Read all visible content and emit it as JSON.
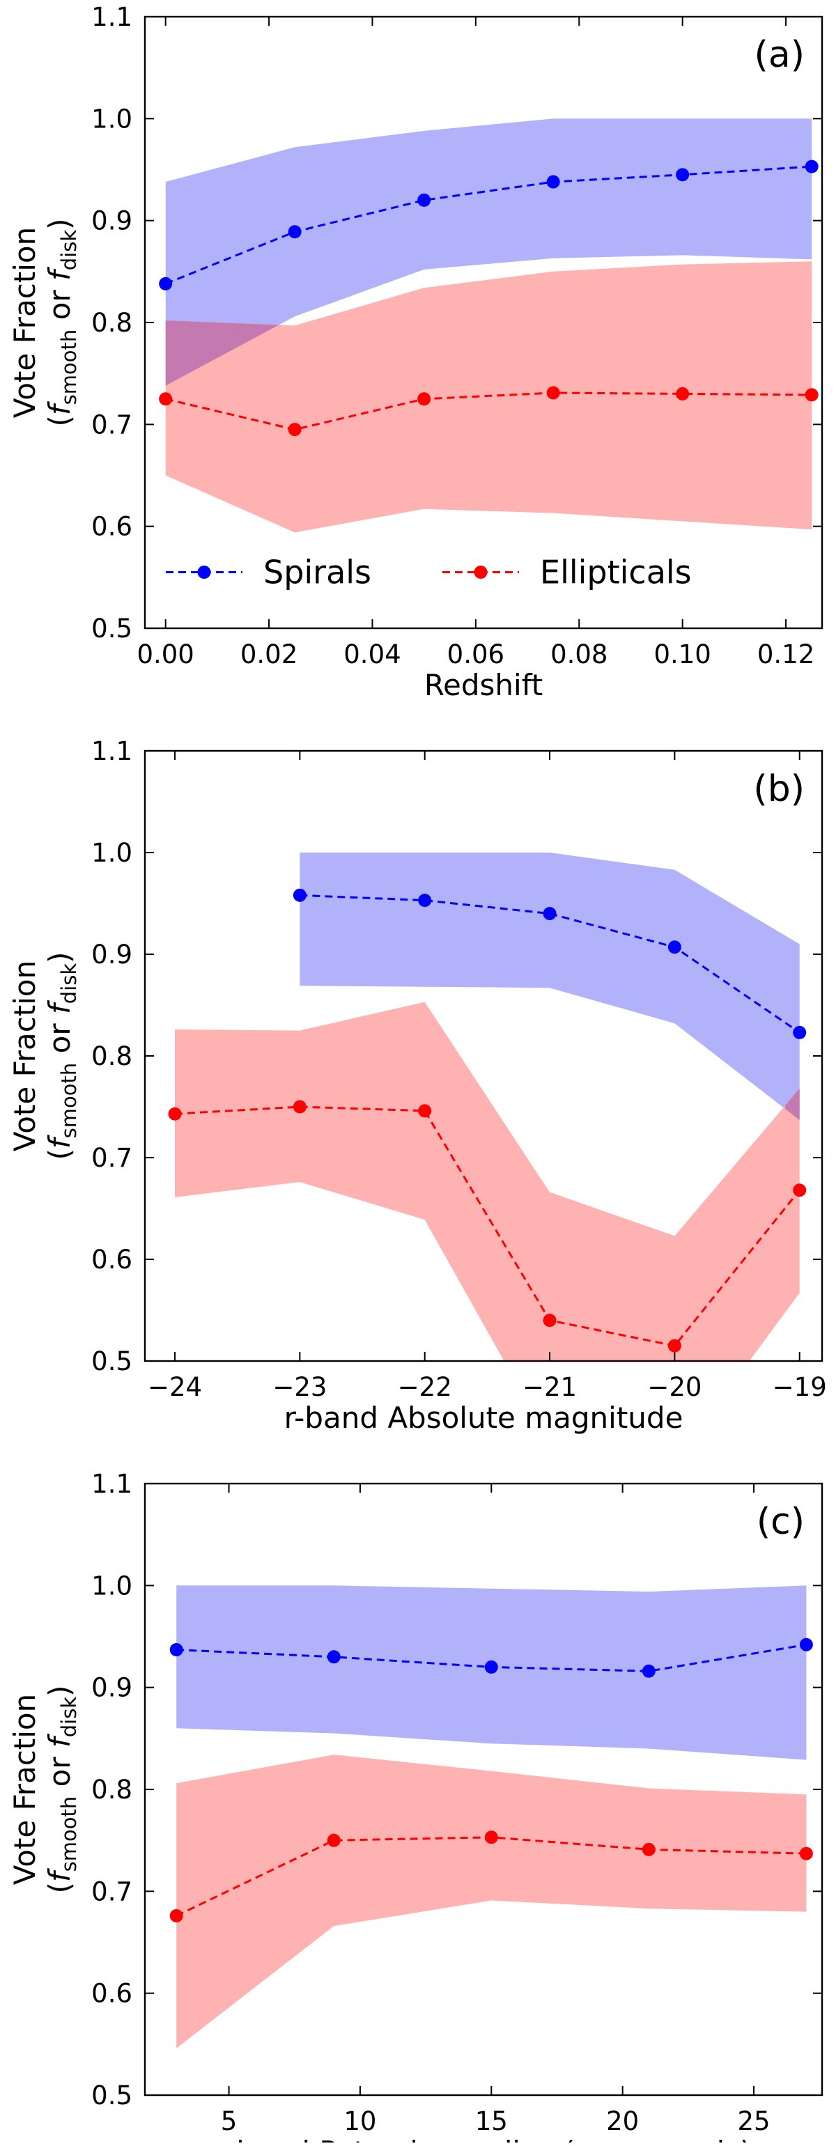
{
  "figure": {
    "ylabel_main": "Vote Fraction",
    "ylabel_sub_open": "(",
    "ylabel_f1": "f",
    "ylabel_s1": "smooth",
    "ylabel_or": " or ",
    "ylabel_f2": "f",
    "ylabel_s2": "disk",
    "ylabel_close": ")"
  },
  "colors": {
    "spirals_line": "#0000ff",
    "spirals_band": "#b2b2fb",
    "ellipticals_line": "#ff0000",
    "ellipticals_band": "#ffb2b2",
    "overlap_band": "#c47ab0"
  },
  "chart_data": [
    {
      "type": "line",
      "panel_label": "(a)",
      "title": "",
      "xlabel": "Redshift",
      "ylabel": "Vote Fraction (f_smooth or f_disk)",
      "xlim": [
        -0.004,
        0.127
      ],
      "ylim": [
        0.5,
        1.1
      ],
      "xticks": [
        0.0,
        0.02,
        0.04,
        0.06,
        0.08,
        0.1,
        0.12
      ],
      "xtick_labels": [
        "0.00",
        "0.02",
        "0.04",
        "0.06",
        "0.08",
        "0.10",
        "0.12"
      ],
      "yticks": [
        0.5,
        0.6,
        0.7,
        0.8,
        0.9,
        1.0,
        1.1
      ],
      "ytick_labels": [
        "0.5",
        "0.6",
        "0.7",
        "0.8",
        "0.9",
        "1.0",
        "1.1"
      ],
      "legend": {
        "placement": "bottom",
        "entries": [
          "Spirals",
          "Ellipticals"
        ]
      },
      "series": [
        {
          "name": "Spirals",
          "x": [
            0.0,
            0.025,
            0.05,
            0.075,
            0.1,
            0.125
          ],
          "y": [
            0.838,
            0.889,
            0.92,
            0.938,
            0.945,
            0.953
          ],
          "upper": [
            0.938,
            0.972,
            0.988,
            1.0,
            1.0,
            1.0
          ],
          "lower": [
            0.738,
            0.806,
            0.852,
            0.863,
            0.866,
            0.862
          ]
        },
        {
          "name": "Ellipticals",
          "x": [
            0.0,
            0.025,
            0.05,
            0.075,
            0.1,
            0.125
          ],
          "y": [
            0.725,
            0.695,
            0.725,
            0.731,
            0.73,
            0.729
          ],
          "upper": [
            0.802,
            0.797,
            0.834,
            0.85,
            0.857,
            0.86
          ],
          "lower": [
            0.65,
            0.594,
            0.617,
            0.613,
            0.605,
            0.597
          ]
        }
      ]
    },
    {
      "type": "line",
      "panel_label": "(b)",
      "title": "",
      "xlabel": "r-band Absolute magnitude",
      "ylabel": "Vote Fraction (f_smooth or f_disk)",
      "xlim": [
        -24.24,
        -18.82
      ],
      "ylim": [
        0.5,
        1.1
      ],
      "xticks": [
        -24,
        -23,
        -22,
        -21,
        -20,
        -19
      ],
      "xtick_labels": [
        "−24",
        "−23",
        "−22",
        "−21",
        "−20",
        "−19"
      ],
      "yticks": [
        0.5,
        0.6,
        0.7,
        0.8,
        0.9,
        1.0,
        1.1
      ],
      "ytick_labels": [
        "0.5",
        "0.6",
        "0.7",
        "0.8",
        "0.9",
        "1.0",
        "1.1"
      ],
      "series": [
        {
          "name": "Spirals",
          "x": [
            -23,
            -22,
            -21,
            -20,
            -19
          ],
          "y": [
            0.958,
            0.953,
            0.94,
            0.907,
            0.823
          ],
          "upper": [
            1.0,
            1.0,
            1.0,
            0.983,
            0.91
          ],
          "lower": [
            0.869,
            0.868,
            0.867,
            0.832,
            0.737
          ]
        },
        {
          "name": "Ellipticals",
          "x": [
            -24,
            -23,
            -22,
            -21,
            -20,
            -19
          ],
          "y": [
            0.743,
            0.75,
            0.746,
            0.54,
            0.515,
            0.668
          ],
          "upper": [
            0.826,
            0.825,
            0.853,
            0.666,
            0.623,
            0.768
          ],
          "lower": [
            0.661,
            0.676,
            0.639,
            0.42,
            0.4,
            0.567
          ]
        }
      ]
    },
    {
      "type": "line",
      "panel_label": "(c)",
      "title": "",
      "xlabel": "r-band Petrosian radius (arcseconds)",
      "ylabel": "Vote Fraction (f_smooth or f_disk)",
      "xlim": [
        1.8,
        27.6
      ],
      "ylim": [
        0.5,
        1.1
      ],
      "xticks": [
        5,
        10,
        15,
        20,
        25
      ],
      "xtick_labels": [
        "5",
        "10",
        "15",
        "20",
        "25"
      ],
      "yticks": [
        0.5,
        0.6,
        0.7,
        0.8,
        0.9,
        1.0,
        1.1
      ],
      "ytick_labels": [
        "0.5",
        "0.6",
        "0.7",
        "0.8",
        "0.9",
        "1.0",
        "1.1"
      ],
      "series": [
        {
          "name": "Spirals",
          "x": [
            3,
            9,
            15,
            21,
            27
          ],
          "y": [
            0.937,
            0.93,
            0.92,
            0.916,
            0.942
          ],
          "upper": [
            1.0,
            1.0,
            0.997,
            0.994,
            1.0
          ],
          "lower": [
            0.86,
            0.855,
            0.845,
            0.84,
            0.829
          ]
        },
        {
          "name": "Ellipticals",
          "x": [
            3,
            9,
            15,
            21,
            27
          ],
          "y": [
            0.676,
            0.75,
            0.753,
            0.741,
            0.737
          ],
          "upper": [
            0.806,
            0.834,
            0.818,
            0.801,
            0.795
          ],
          "lower": [
            0.546,
            0.666,
            0.691,
            0.683,
            0.68
          ]
        }
      ]
    }
  ]
}
